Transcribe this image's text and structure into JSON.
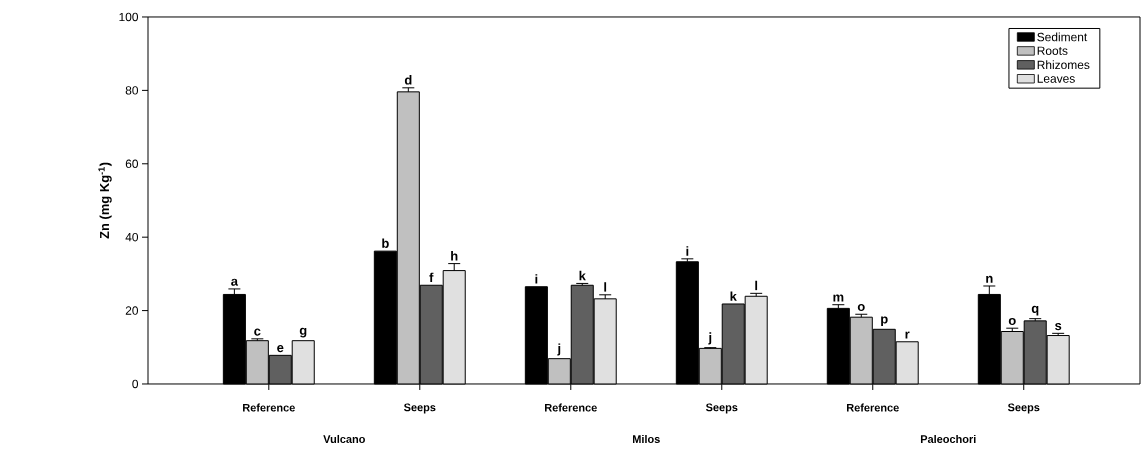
{
  "chart_data": {
    "type": "bar",
    "ylabel": "Zn (mg Kg$^{-1}$)",
    "categories": [
      "Reference",
      "Seeps",
      "Reference",
      "Seeps",
      "Reference",
      "Seeps"
    ],
    "series": [
      {
        "name": "Sediment",
        "color": "#000000",
        "values": [
          24.4,
          36.2,
          26.5,
          33.3,
          20.6,
          24.4
        ],
        "errors": [
          1.5,
          null,
          null,
          0.8,
          1.0,
          2.3
        ],
        "value_labels": [
          "a",
          "b",
          "i",
          "i",
          "m",
          "n"
        ]
      },
      {
        "name": "Roots",
        "color": "#c0c0c0",
        "values": [
          11.8,
          79.6,
          6.9,
          9.7,
          18.2,
          14.3
        ],
        "errors": [
          0.5,
          1.1,
          null,
          0.2,
          0.8,
          0.9
        ],
        "value_labels": [
          "c",
          "d",
          "j",
          "j",
          "o",
          "o"
        ]
      },
      {
        "name": "Rhizomes",
        "color": "#606060",
        "values": [
          7.8,
          26.9,
          26.9,
          21.8,
          14.9,
          17.2
        ],
        "errors": [
          null,
          null,
          0.5,
          null,
          null,
          0.6
        ],
        "value_labels": [
          "e",
          "f",
          "k",
          "k",
          "p",
          "q"
        ]
      },
      {
        "name": "Leaves",
        "color": "#e0e0e0",
        "values": [
          11.8,
          30.9,
          23.2,
          23.9,
          11.5,
          13.2
        ],
        "errors": [
          null,
          1.9,
          1.1,
          0.8,
          null,
          0.6
        ],
        "value_labels": [
          "g",
          "h",
          "l",
          "l",
          "r",
          "s"
        ]
      }
    ],
    "ylim": [
      0,
      100
    ],
    "yticks": [
      0,
      20,
      40,
      60,
      80,
      100
    ],
    "legend": "top right",
    "annotations": [
      "Vulcano",
      "Milos",
      "Paleochori"
    ]
  }
}
